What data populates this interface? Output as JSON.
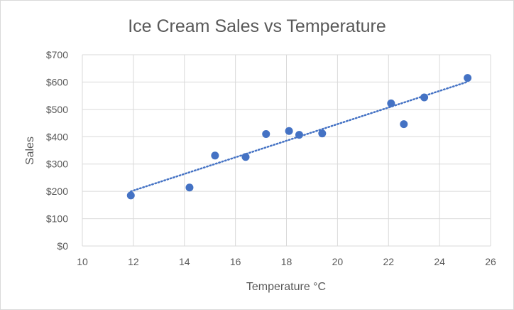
{
  "chart_data": {
    "type": "scatter",
    "title": "Ice Cream Sales vs Temperature",
    "xlabel": "Temperature °C",
    "ylabel": "Sales",
    "xlim": [
      10,
      26
    ],
    "ylim": [
      0,
      700
    ],
    "x_ticks": [
      10,
      12,
      14,
      16,
      18,
      20,
      22,
      24,
      26
    ],
    "y_ticks": [
      0,
      100,
      200,
      300,
      400,
      500,
      600,
      700
    ],
    "y_tick_labels": [
      "$0",
      "$100",
      "$200",
      "$300",
      "$400",
      "$500",
      "$600",
      "$700"
    ],
    "grid": true,
    "legend": "none",
    "series": [
      {
        "x": [
          11.9,
          14.2,
          15.2,
          16.4,
          17.2,
          18.1,
          18.5,
          19.4,
          22.1,
          22.6,
          23.4,
          25.1
        ],
        "y": [
          185,
          214,
          331,
          326,
          410,
          421,
          407,
          412,
          522,
          446,
          544,
          615
        ],
        "color": "#4472c4"
      }
    ],
    "trendline": {
      "type": "linear",
      "x_range": [
        11.9,
        25.1
      ],
      "y_range": [
        200,
        601
      ],
      "color": "#4472c4",
      "style": "dotted"
    }
  },
  "colors": {
    "grid": "#d9d9d9",
    "text": "#595959",
    "points": "#4472c4"
  }
}
